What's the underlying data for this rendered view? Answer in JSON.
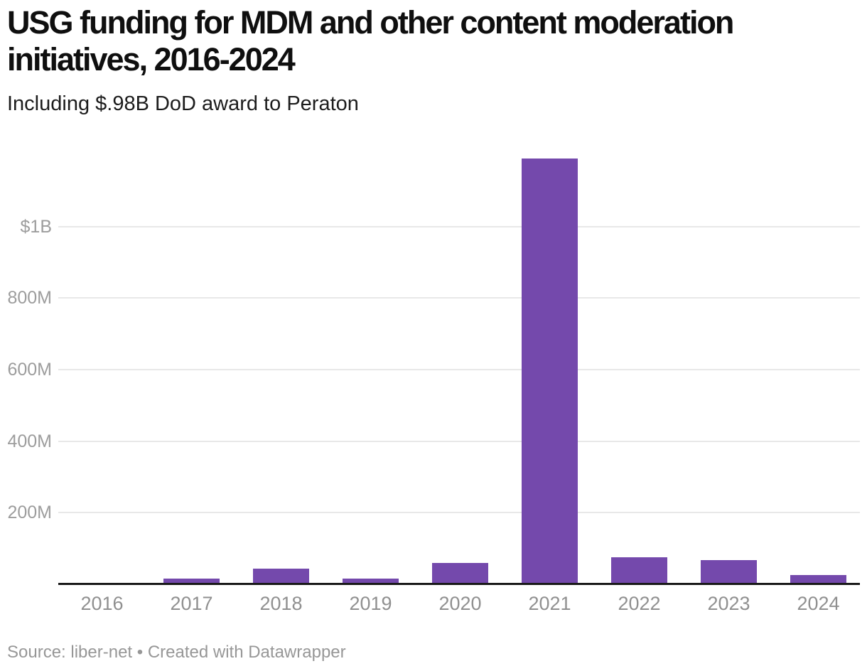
{
  "header": {
    "title": "USG funding for MDM and other content moderation initiatives, 2016-2024",
    "subtitle": "Including $.98B DoD award to Peraton"
  },
  "footer": {
    "full_text": "Source: liber-net • Created with Datawrapper"
  },
  "colors": {
    "bar": "#7449ac",
    "gridline": "#e8e8e8",
    "axis": "#1a1a1a",
    "y_tick_label": "#9d9d9d",
    "x_tick_label": "#909090",
    "title": "#0f0f0f",
    "footer": "#979797"
  },
  "chart_data": {
    "type": "bar",
    "title": "USG funding for MDM and other content moderation initiatives, 2016-2024",
    "subtitle": "Including $.98B DoD award to Peraton",
    "source": "Source: liber-net • Created with Datawrapper",
    "categories": [
      "2016",
      "2017",
      "2018",
      "2019",
      "2020",
      "2021",
      "2022",
      "2023",
      "2024"
    ],
    "values": [
      0,
      16,
      44,
      16,
      60,
      1190,
      75,
      67,
      25
    ],
    "values_unit": "USD millions",
    "xlabel": "",
    "ylabel": "",
    "ylim": [
      0,
      1200
    ],
    "yticks": [
      {
        "value": 200,
        "label": "200M"
      },
      {
        "value": 400,
        "label": "400M"
      },
      {
        "value": 600,
        "label": "600M"
      },
      {
        "value": 800,
        "label": "800M"
      },
      {
        "value": 1000,
        "label": "$1B"
      }
    ],
    "grid": "horizontal",
    "legend": "none",
    "bar_color": "#7449ac"
  }
}
